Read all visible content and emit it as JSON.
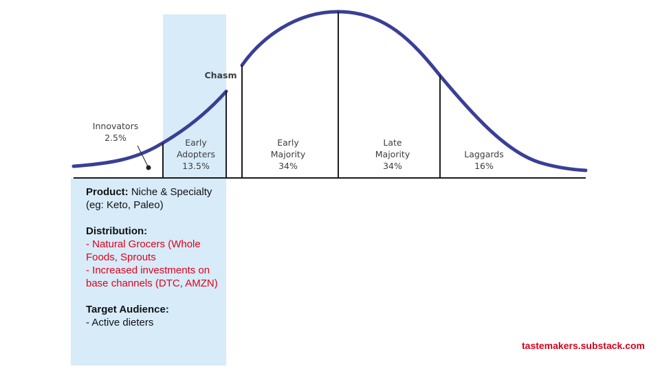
{
  "diagram": {
    "chasm_label": "Chasm",
    "segments": [
      {
        "id": "innovators",
        "lines": [
          "Innovators",
          "2.5%"
        ]
      },
      {
        "id": "early-adopters",
        "lines": [
          "Early",
          "Adopters",
          "13.5%"
        ]
      },
      {
        "id": "early-majority",
        "lines": [
          "Early",
          "Majority",
          "34%"
        ]
      },
      {
        "id": "late-majority",
        "lines": [
          "Late",
          "Majority",
          "34%"
        ]
      },
      {
        "id": "laggards",
        "lines": [
          "Laggards",
          "16%"
        ]
      }
    ],
    "colors": {
      "curve": "#3a3f95",
      "highlight": "#d7ebf9",
      "axis": "#1a1a1a"
    }
  },
  "notes": {
    "product_heading": "Product:",
    "product_text": "Niche & Specialty (eg: Keto, Paleo)",
    "distribution_heading": "Distribution:",
    "distribution_items": [
      "- Natural Grocers (Whole Foods, Sprouts",
      "- Increased investments on base channels (DTC, AMZN)"
    ],
    "audience_heading": "Target Audience:",
    "audience_items": [
      "- Active dieters"
    ]
  },
  "footer": {
    "credit": "tastemakers.substack.com"
  }
}
